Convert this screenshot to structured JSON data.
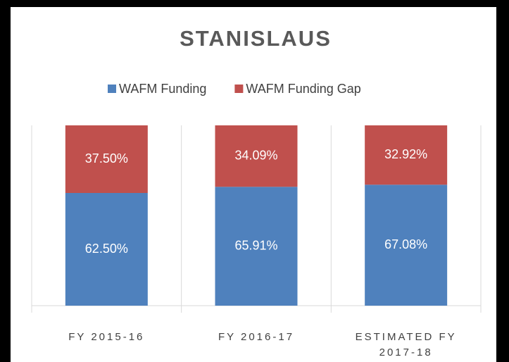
{
  "chart_data": {
    "type": "stacked_bar",
    "title": "STANISLAUS",
    "categories": [
      "FY 2015-16",
      "FY 2016-17",
      "ESTIMATED FY 2017-18"
    ],
    "series": [
      {
        "name": "WAFM Funding",
        "color": "#4f81bd",
        "values": [
          62.5,
          65.91,
          67.08
        ],
        "value_labels": [
          "62.50%",
          "65.91%",
          "67.08%"
        ]
      },
      {
        "name": "WAFM Funding Gap",
        "color": "#c0504d",
        "values": [
          37.5,
          34.09,
          32.92
        ],
        "value_labels": [
          "37.50%",
          "34.09%",
          "32.92%"
        ]
      }
    ],
    "ylim": [
      0,
      100
    ],
    "legend": "top"
  }
}
